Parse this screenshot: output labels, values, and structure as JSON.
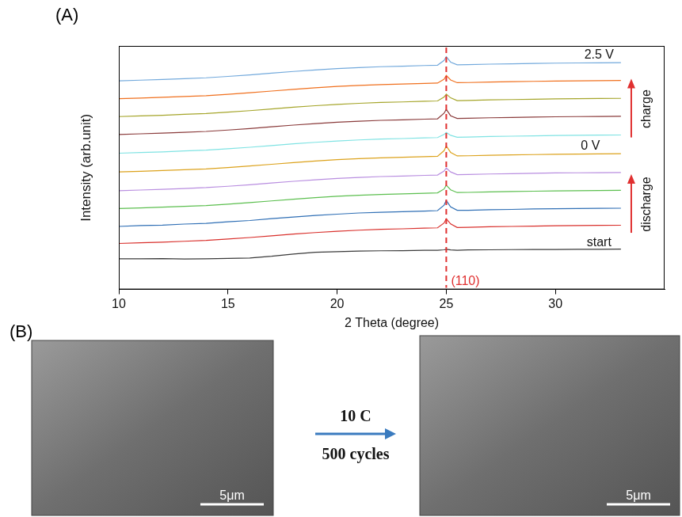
{
  "chart_data": {
    "type": "line",
    "x_label": "2 Theta (degree)",
    "y_label": "Intensity (arb.unit)",
    "x": [
      10,
      11,
      12,
      13,
      14,
      15,
      16,
      17,
      18,
      19,
      20,
      21,
      22,
      23,
      24,
      24.6,
      24.9,
      25,
      25.2,
      25.5,
      26,
      27,
      28,
      29,
      30,
      31,
      32,
      33
    ],
    "series": [
      {
        "color": "#3a3a3a",
        "values": [
          1.0,
          1.0,
          1.01,
          0.99,
          1.0,
          1.02,
          1.05,
          1.15,
          1.28,
          1.38,
          1.42,
          1.45,
          1.47,
          1.48,
          1.5,
          1.5,
          1.53,
          1.56,
          1.52,
          1.5,
          1.52,
          1.53,
          1.54,
          1.55,
          1.55,
          1.56,
          1.56,
          1.57
        ]
      },
      {
        "color": "#d9302c",
        "values": [
          1.9,
          1.94,
          1.98,
          2.03,
          2.08,
          2.16,
          2.25,
          2.35,
          2.45,
          2.54,
          2.62,
          2.68,
          2.73,
          2.76,
          2.8,
          2.82,
          3.1,
          3.35,
          3.05,
          2.84,
          2.85,
          2.88,
          2.9,
          2.92,
          2.94,
          2.95,
          2.96,
          2.97
        ]
      },
      {
        "color": "#2f6fb5",
        "values": [
          2.9,
          2.95,
          2.98,
          3.04,
          3.08,
          3.17,
          3.25,
          3.36,
          3.45,
          3.55,
          3.62,
          3.69,
          3.73,
          3.77,
          3.8,
          3.83,
          4.15,
          4.42,
          4.05,
          3.85,
          3.85,
          3.88,
          3.9,
          3.93,
          3.94,
          3.95,
          3.96,
          3.97
        ]
      },
      {
        "color": "#5cbf4f",
        "values": [
          3.95,
          3.99,
          4.03,
          4.08,
          4.13,
          4.21,
          4.3,
          4.4,
          4.5,
          4.59,
          4.67,
          4.73,
          4.78,
          4.81,
          4.85,
          4.87,
          5.1,
          5.32,
          5.05,
          4.89,
          4.9,
          4.93,
          4.95,
          4.97,
          4.99,
          5.0,
          5.01,
          5.02
        ]
      },
      {
        "color": "#b98ee0",
        "values": [
          5.0,
          5.04,
          5.08,
          5.13,
          5.18,
          5.26,
          5.35,
          5.45,
          5.55,
          5.64,
          5.72,
          5.78,
          5.83,
          5.86,
          5.9,
          5.92,
          6.15,
          6.33,
          6.1,
          5.94,
          5.95,
          5.98,
          6.0,
          6.02,
          6.04,
          6.05,
          6.06,
          6.07
        ]
      },
      {
        "color": "#dca21c",
        "values": [
          6.1,
          6.14,
          6.18,
          6.23,
          6.28,
          6.36,
          6.45,
          6.55,
          6.65,
          6.74,
          6.82,
          6.88,
          6.93,
          6.96,
          7.0,
          7.02,
          7.35,
          7.62,
          7.25,
          7.04,
          7.05,
          7.08,
          7.1,
          7.12,
          7.14,
          7.15,
          7.16,
          7.17
        ]
      },
      {
        "color": "#7fe3e3",
        "values": [
          7.2,
          7.24,
          7.28,
          7.33,
          7.38,
          7.46,
          7.55,
          7.65,
          7.75,
          7.84,
          7.92,
          7.98,
          8.03,
          8.06,
          8.1,
          8.12,
          8.3,
          8.42,
          8.25,
          8.14,
          8.15,
          8.18,
          8.2,
          8.22,
          8.24,
          8.25,
          8.26,
          8.27
        ]
      },
      {
        "color": "#8a3b3b",
        "values": [
          8.3,
          8.34,
          8.38,
          8.43,
          8.48,
          8.56,
          8.65,
          8.75,
          8.85,
          8.94,
          9.02,
          9.08,
          9.13,
          9.16,
          9.2,
          9.22,
          9.55,
          9.77,
          9.4,
          9.24,
          9.25,
          9.28,
          9.3,
          9.32,
          9.34,
          9.35,
          9.36,
          9.37
        ]
      },
      {
        "color": "#a5a52a",
        "values": [
          9.35,
          9.39,
          9.43,
          9.48,
          9.53,
          9.61,
          9.7,
          9.8,
          9.9,
          9.99,
          10.07,
          10.13,
          10.18,
          10.21,
          10.25,
          10.27,
          10.5,
          10.67,
          10.45,
          10.29,
          10.3,
          10.33,
          10.35,
          10.37,
          10.39,
          10.4,
          10.41,
          10.42
        ]
      },
      {
        "color": "#f0701e",
        "values": [
          10.4,
          10.44,
          10.48,
          10.53,
          10.58,
          10.66,
          10.75,
          10.85,
          10.95,
          11.04,
          11.12,
          11.18,
          11.23,
          11.26,
          11.3,
          11.32,
          11.55,
          11.77,
          11.5,
          11.34,
          11.35,
          11.38,
          11.4,
          11.42,
          11.44,
          11.45,
          11.46,
          11.47
        ]
      },
      {
        "color": "#72a9dc",
        "values": [
          11.45,
          11.49,
          11.53,
          11.58,
          11.63,
          11.71,
          11.8,
          11.9,
          12.0,
          12.09,
          12.17,
          12.23,
          12.28,
          12.31,
          12.35,
          12.37,
          12.65,
          12.87,
          12.55,
          12.39,
          12.4,
          12.43,
          12.45,
          12.47,
          12.49,
          12.5,
          12.51,
          12.52
        ]
      }
    ],
    "xlim": [
      10,
      35
    ],
    "xticks": [
      10,
      15,
      20,
      25,
      30
    ],
    "ylim": [
      -0.8,
      13.5
    ],
    "tick_labels": "x",
    "grid": false,
    "annotations": [
      {
        "text": "(110)",
        "x": 25,
        "y": -0.35,
        "line_style": "dashed",
        "color": "#e03030"
      },
      {
        "text": "2.5 V",
        "x": 32,
        "y": 12.95
      },
      {
        "text": "0 V",
        "x": 31.6,
        "y": 7.6
      },
      {
        "text": "start",
        "x": 32,
        "y": 1.95
      },
      {
        "text": "charge",
        "x": 34.2,
        "y": 9.8,
        "marker": "arrow",
        "color": "#e03030"
      },
      {
        "text": "discharge",
        "x": 34.2,
        "y": 4.2,
        "marker": "arrow",
        "color": "#e03030"
      }
    ]
  },
  "panel_labels": [
    "(A)",
    "(B)"
  ],
  "panel_b": {
    "arrow_labels": [
      "10 C",
      "500 cycles"
    ],
    "scale_bars": [
      "5μm",
      "5μm"
    ]
  }
}
